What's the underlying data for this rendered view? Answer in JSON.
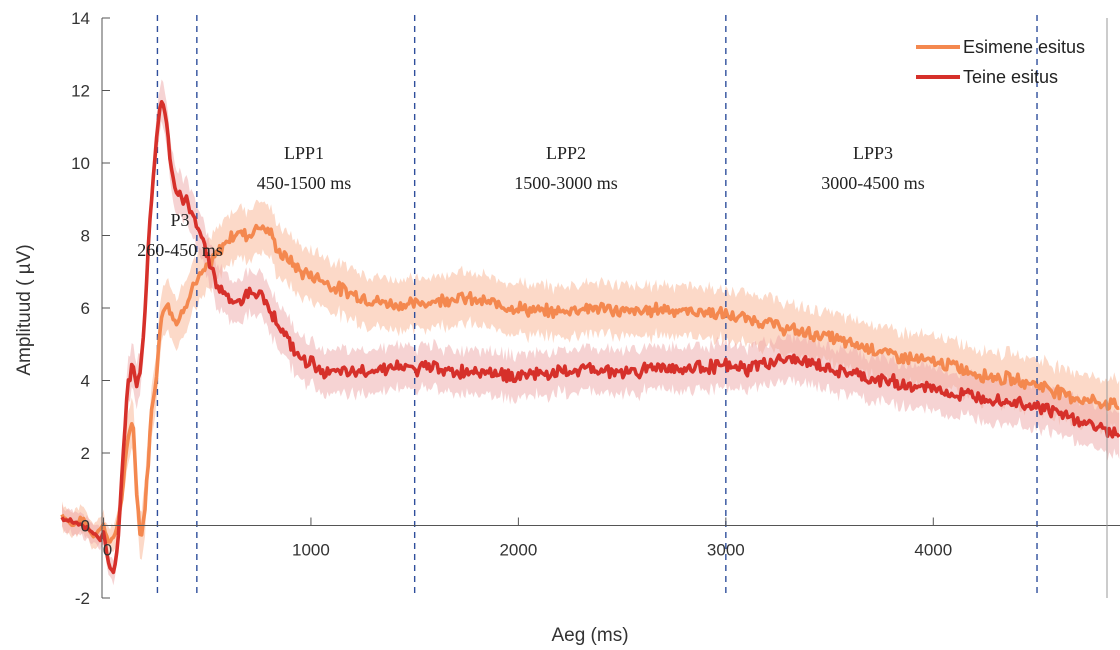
{
  "chart_data": {
    "type": "line",
    "xlabel": "Aeg (ms)",
    "ylabel": "Amplituud ( µV)",
    "xlim": [
      -200,
      4900
    ],
    "ylim": [
      -2,
      14
    ],
    "x_ticks": [
      0,
      1000,
      2000,
      3000,
      4000
    ],
    "y_ticks": [
      -2,
      0,
      2,
      4,
      6,
      8,
      10,
      12,
      14
    ],
    "grid": false,
    "legend_position": "top-right",
    "boundaries": [
      260,
      450,
      1500,
      3000,
      4500
    ],
    "regions": [
      {
        "name": "P3",
        "range": "260-450 ms"
      },
      {
        "name": "LPP1",
        "range": "450-1500 ms"
      },
      {
        "name": "LPP2",
        "range": "1500-3000 ms"
      },
      {
        "name": "LPP3",
        "range": "3000-4500 ms"
      }
    ],
    "series": [
      {
        "name": "Esimene esitus",
        "color": "#f4884f",
        "band_color": "#f9b99a",
        "band_halfwidth": 0.7,
        "points": [
          [
            -200,
            0.3
          ],
          [
            -150,
            0.0
          ],
          [
            -100,
            0.2
          ],
          [
            -50,
            -0.3
          ],
          [
            -20,
            -0.1
          ],
          [
            0,
            0.0
          ],
          [
            30,
            -0.5
          ],
          [
            60,
            -0.2
          ],
          [
            90,
            0.8
          ],
          [
            120,
            2.5
          ],
          [
            140,
            3.0
          ],
          [
            160,
            1.0
          ],
          [
            180,
            -0.5
          ],
          [
            200,
            0.5
          ],
          [
            230,
            3.0
          ],
          [
            260,
            4.5
          ],
          [
            280,
            5.8
          ],
          [
            300,
            6.2
          ],
          [
            320,
            6.0
          ],
          [
            340,
            5.7
          ],
          [
            360,
            5.6
          ],
          [
            380,
            5.9
          ],
          [
            400,
            6.2
          ],
          [
            430,
            6.6
          ],
          [
            460,
            6.8
          ],
          [
            500,
            7.1
          ],
          [
            550,
            7.5
          ],
          [
            600,
            7.9
          ],
          [
            650,
            8.1
          ],
          [
            700,
            8.0
          ],
          [
            750,
            8.3
          ],
          [
            800,
            8.1
          ],
          [
            850,
            7.5
          ],
          [
            900,
            7.3
          ],
          [
            950,
            7.0
          ],
          [
            1000,
            6.9
          ],
          [
            1050,
            6.8
          ],
          [
            1100,
            6.6
          ],
          [
            1150,
            6.5
          ],
          [
            1200,
            6.4
          ],
          [
            1300,
            6.2
          ],
          [
            1400,
            6.1
          ],
          [
            1500,
            6.1
          ],
          [
            1600,
            6.2
          ],
          [
            1700,
            6.3
          ],
          [
            1800,
            6.2
          ],
          [
            1900,
            6.1
          ],
          [
            2000,
            6.0
          ],
          [
            2100,
            5.9
          ],
          [
            2200,
            5.9
          ],
          [
            2300,
            6.0
          ],
          [
            2400,
            6.0
          ],
          [
            2500,
            5.9
          ],
          [
            2600,
            5.9
          ],
          [
            2700,
            6.0
          ],
          [
            2800,
            5.9
          ],
          [
            2900,
            5.9
          ],
          [
            3000,
            5.8
          ],
          [
            3100,
            5.7
          ],
          [
            3200,
            5.6
          ],
          [
            3300,
            5.4
          ],
          [
            3400,
            5.3
          ],
          [
            3500,
            5.2
          ],
          [
            3600,
            5.0
          ],
          [
            3700,
            4.9
          ],
          [
            3800,
            4.7
          ],
          [
            3900,
            4.6
          ],
          [
            4000,
            4.5
          ],
          [
            4100,
            4.4
          ],
          [
            4200,
            4.2
          ],
          [
            4300,
            4.1
          ],
          [
            4400,
            4.0
          ],
          [
            4500,
            3.9
          ],
          [
            4600,
            3.7
          ],
          [
            4700,
            3.5
          ],
          [
            4800,
            3.4
          ],
          [
            4900,
            3.3
          ]
        ]
      },
      {
        "name": "Teine esitus",
        "color": "#d6302a",
        "band_color": "#eea7a7",
        "band_halfwidth": 0.6,
        "points": [
          [
            -200,
            0.2
          ],
          [
            -150,
            0.1
          ],
          [
            -100,
            0.0
          ],
          [
            -50,
            -0.2
          ],
          [
            -20,
            -0.4
          ],
          [
            0,
            -0.2
          ],
          [
            30,
            -1.2
          ],
          [
            50,
            -1.3
          ],
          [
            70,
            -0.5
          ],
          [
            90,
            1.5
          ],
          [
            120,
            4.0
          ],
          [
            140,
            4.3
          ],
          [
            160,
            3.8
          ],
          [
            180,
            4.3
          ],
          [
            200,
            6.0
          ],
          [
            230,
            9.0
          ],
          [
            260,
            11.0
          ],
          [
            280,
            11.8
          ],
          [
            300,
            11.3
          ],
          [
            320,
            10.2
          ],
          [
            340,
            9.4
          ],
          [
            360,
            9.1
          ],
          [
            380,
            9.0
          ],
          [
            400,
            8.9
          ],
          [
            430,
            8.6
          ],
          [
            460,
            8.2
          ],
          [
            500,
            7.5
          ],
          [
            550,
            6.6
          ],
          [
            600,
            6.3
          ],
          [
            650,
            6.1
          ],
          [
            700,
            6.5
          ],
          [
            750,
            6.4
          ],
          [
            800,
            6.0
          ],
          [
            850,
            5.5
          ],
          [
            900,
            5.0
          ],
          [
            950,
            4.6
          ],
          [
            1000,
            4.5
          ],
          [
            1050,
            4.3
          ],
          [
            1100,
            4.2
          ],
          [
            1200,
            4.2
          ],
          [
            1300,
            4.3
          ],
          [
            1400,
            4.4
          ],
          [
            1500,
            4.3
          ],
          [
            1600,
            4.4
          ],
          [
            1700,
            4.2
          ],
          [
            1800,
            4.3
          ],
          [
            1900,
            4.2
          ],
          [
            2000,
            4.1
          ],
          [
            2100,
            4.2
          ],
          [
            2200,
            4.2
          ],
          [
            2300,
            4.3
          ],
          [
            2400,
            4.3
          ],
          [
            2500,
            4.2
          ],
          [
            2600,
            4.3
          ],
          [
            2700,
            4.4
          ],
          [
            2800,
            4.3
          ],
          [
            2900,
            4.4
          ],
          [
            3000,
            4.4
          ],
          [
            3100,
            4.3
          ],
          [
            3200,
            4.5
          ],
          [
            3300,
            4.6
          ],
          [
            3400,
            4.5
          ],
          [
            3500,
            4.3
          ],
          [
            3600,
            4.2
          ],
          [
            3700,
            4.0
          ],
          [
            3800,
            4.0
          ],
          [
            3900,
            3.8
          ],
          [
            4000,
            3.8
          ],
          [
            4100,
            3.6
          ],
          [
            4200,
            3.6
          ],
          [
            4300,
            3.5
          ],
          [
            4400,
            3.4
          ],
          [
            4500,
            3.3
          ],
          [
            4600,
            3.1
          ],
          [
            4700,
            2.9
          ],
          [
            4800,
            2.7
          ],
          [
            4900,
            2.5
          ]
        ]
      }
    ]
  }
}
